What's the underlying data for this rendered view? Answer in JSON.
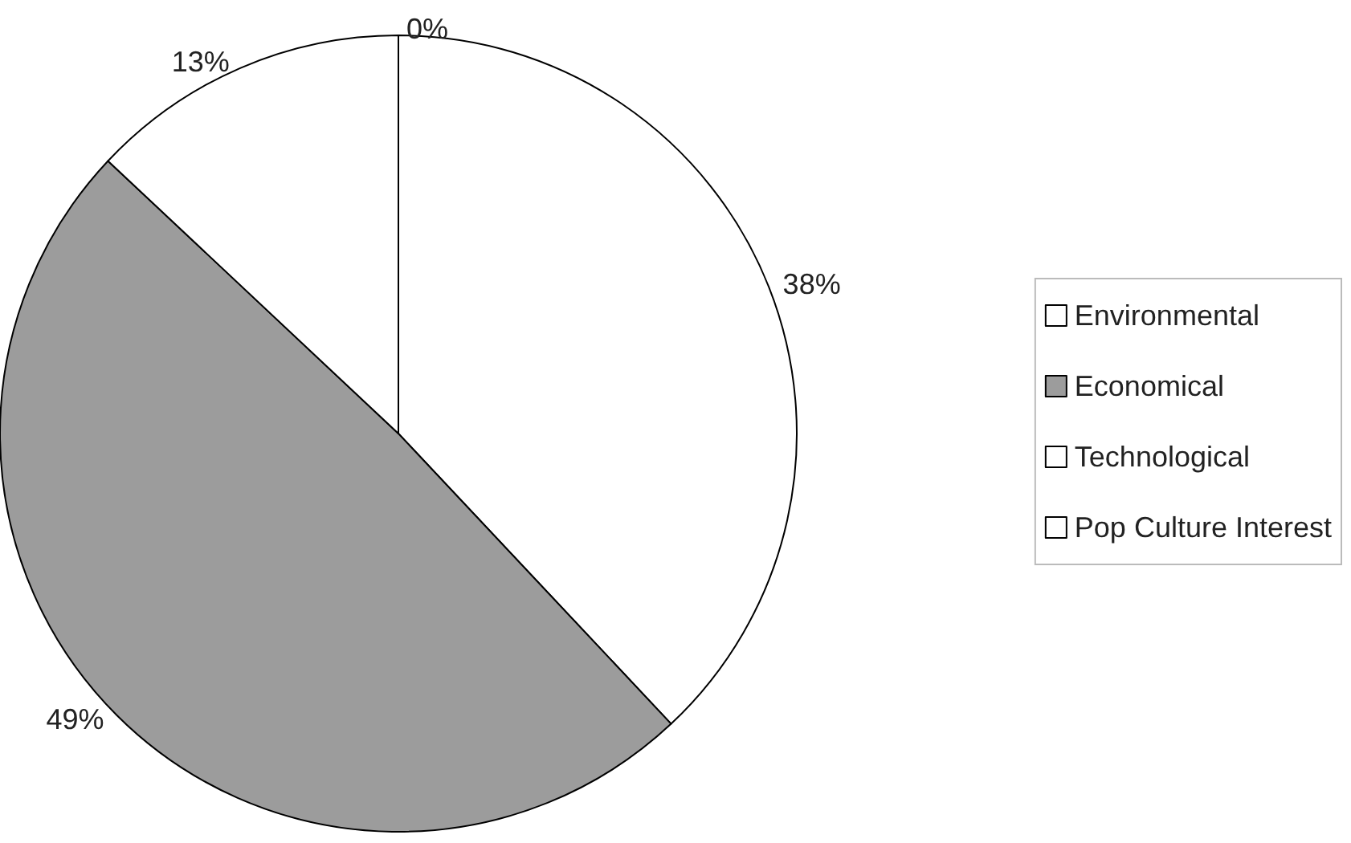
{
  "chart_data": {
    "type": "pie",
    "categories": [
      "Environmental",
      "Economical",
      "Technological",
      "Pop Culture Interest"
    ],
    "values": [
      38,
      49,
      13,
      0
    ],
    "colors": [
      "#ffffff",
      "#9c9c9c",
      "#ffffff",
      "#ffffff"
    ],
    "value_labels": [
      "38%",
      "49%",
      "13%",
      "0%"
    ],
    "legend": "right"
  }
}
